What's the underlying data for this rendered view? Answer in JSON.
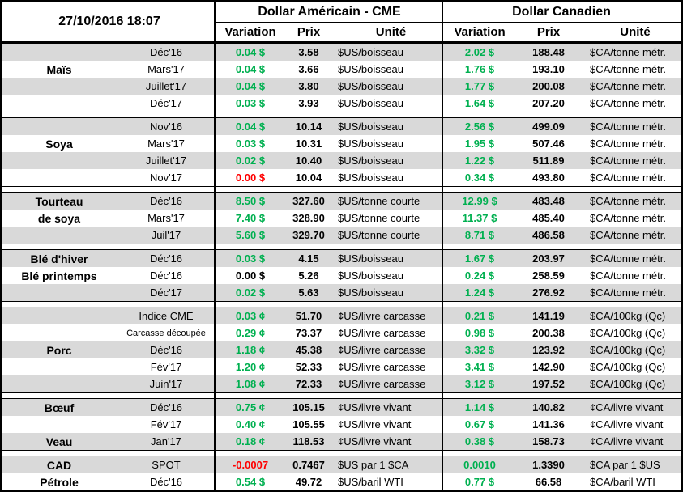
{
  "timestamp": "27/10/2016 18:07",
  "header": {
    "usd_title": "Dollar Américain - CME",
    "cad_title": "Dollar Canadien",
    "columns": {
      "variation": "Variation",
      "prix": "Prix",
      "unite": "Unité"
    }
  },
  "colors": {
    "positive": "#00B050",
    "negative": "#FF0000",
    "stripe": "#D9D9D9"
  },
  "sections": [
    {
      "rows": [
        {
          "name": "",
          "month": "Déc'16",
          "us": {
            "variation": "0.04 $",
            "trend": "up",
            "prix": "3.58",
            "unite": "$US/boisseau"
          },
          "ca": {
            "variation": "2.02 $",
            "trend": "up",
            "prix": "188.48",
            "unite": "$CA/tonne métr."
          }
        },
        {
          "name": "Maïs",
          "month": "Mars'17",
          "us": {
            "variation": "0.04 $",
            "trend": "up",
            "prix": "3.66",
            "unite": "$US/boisseau"
          },
          "ca": {
            "variation": "1.76 $",
            "trend": "up",
            "prix": "193.10",
            "unite": "$CA/tonne métr."
          }
        },
        {
          "name": "",
          "month": "Juillet'17",
          "us": {
            "variation": "0.04 $",
            "trend": "up",
            "prix": "3.80",
            "unite": "$US/boisseau"
          },
          "ca": {
            "variation": "1.77 $",
            "trend": "up",
            "prix": "200.08",
            "unite": "$CA/tonne métr."
          }
        },
        {
          "name": "",
          "month": "Déc'17",
          "us": {
            "variation": "0.03 $",
            "trend": "up",
            "prix": "3.93",
            "unite": "$US/boisseau"
          },
          "ca": {
            "variation": "1.64 $",
            "trend": "up",
            "prix": "207.20",
            "unite": "$CA/tonne métr."
          }
        }
      ]
    },
    {
      "rows": [
        {
          "name": "",
          "month": "Nov'16",
          "us": {
            "variation": "0.04 $",
            "trend": "up",
            "prix": "10.14",
            "unite": "$US/boisseau"
          },
          "ca": {
            "variation": "2.56 $",
            "trend": "up",
            "prix": "499.09",
            "unite": "$CA/tonne métr."
          }
        },
        {
          "name": "Soya",
          "month": "Mars'17",
          "us": {
            "variation": "0.03 $",
            "trend": "up",
            "prix": "10.31",
            "unite": "$US/boisseau"
          },
          "ca": {
            "variation": "1.95 $",
            "trend": "up",
            "prix": "507.46",
            "unite": "$CA/tonne métr."
          }
        },
        {
          "name": "",
          "month": "Juillet'17",
          "us": {
            "variation": "0.02 $",
            "trend": "up",
            "prix": "10.40",
            "unite": "$US/boisseau"
          },
          "ca": {
            "variation": "1.22 $",
            "trend": "up",
            "prix": "511.89",
            "unite": "$CA/tonne métr."
          }
        },
        {
          "name": "",
          "month": "Nov'17",
          "us": {
            "variation": "0.00 $",
            "trend": "down",
            "prix": "10.04",
            "unite": "$US/boisseau"
          },
          "ca": {
            "variation": "0.34 $",
            "trend": "up",
            "prix": "493.80",
            "unite": "$CA/tonne métr."
          }
        }
      ]
    },
    {
      "rows": [
        {
          "name": "Tourteau",
          "month": "Déc'16",
          "us": {
            "variation": "8.50 $",
            "trend": "up",
            "prix": "327.60",
            "unite": "$US/tonne courte"
          },
          "ca": {
            "variation": "12.99 $",
            "trend": "up",
            "prix": "483.48",
            "unite": "$CA/tonne métr."
          }
        },
        {
          "name": "de soya",
          "month": "Mars'17",
          "us": {
            "variation": "7.40 $",
            "trend": "up",
            "prix": "328.90",
            "unite": "$US/tonne courte"
          },
          "ca": {
            "variation": "11.37 $",
            "trend": "up",
            "prix": "485.40",
            "unite": "$CA/tonne métr."
          }
        },
        {
          "name": "",
          "month": "Juil'17",
          "us": {
            "variation": "5.60 $",
            "trend": "up",
            "prix": "329.70",
            "unite": "$US/tonne courte"
          },
          "ca": {
            "variation": "8.71 $",
            "trend": "up",
            "prix": "486.58",
            "unite": "$CA/tonne métr."
          }
        }
      ]
    },
    {
      "rows": [
        {
          "name": "Blé d'hiver",
          "month": "Déc'16",
          "us": {
            "variation": "0.03 $",
            "trend": "up",
            "prix": "4.15",
            "unite": "$US/boisseau"
          },
          "ca": {
            "variation": "1.67 $",
            "trend": "up",
            "prix": "203.97",
            "unite": "$CA/tonne métr."
          }
        },
        {
          "name": "Blé printemps",
          "month": "Déc'16",
          "us": {
            "variation": "0.00 $",
            "trend": "flat",
            "prix": "5.26",
            "unite": "$US/boisseau"
          },
          "ca": {
            "variation": "0.24 $",
            "trend": "up",
            "prix": "258.59",
            "unite": "$CA/tonne métr."
          }
        },
        {
          "name": "",
          "month": "Déc'17",
          "us": {
            "variation": "0.02 $",
            "trend": "up",
            "prix": "5.63",
            "unite": "$US/boisseau"
          },
          "ca": {
            "variation": "1.24 $",
            "trend": "up",
            "prix": "276.92",
            "unite": "$CA/tonne métr."
          }
        }
      ]
    },
    {
      "rows": [
        {
          "name": "",
          "month": "Indice CME",
          "us": {
            "variation": "0.03 ¢",
            "trend": "up",
            "prix": "51.70",
            "unite": "¢US/livre carcasse"
          },
          "ca": {
            "variation": "0.21 $",
            "trend": "up",
            "prix": "141.19",
            "unite": "$CA/100kg (Qc)"
          }
        },
        {
          "name": "",
          "month": "Carcasse découpée",
          "us": {
            "variation": "0.29 ¢",
            "trend": "up",
            "prix": "73.37",
            "unite": "¢US/livre carcasse"
          },
          "ca": {
            "variation": "0.98 $",
            "trend": "up",
            "prix": "200.38",
            "unite": "$CA/100kg (Qc)"
          }
        },
        {
          "name": "Porc",
          "month": "Déc'16",
          "us": {
            "variation": "1.18 ¢",
            "trend": "up",
            "prix": "45.38",
            "unite": "¢US/livre carcasse"
          },
          "ca": {
            "variation": "3.32 $",
            "trend": "up",
            "prix": "123.92",
            "unite": "$CA/100kg (Qc)"
          }
        },
        {
          "name": "",
          "month": "Fév'17",
          "us": {
            "variation": "1.20 ¢",
            "trend": "up",
            "prix": "52.33",
            "unite": "¢US/livre carcasse"
          },
          "ca": {
            "variation": "3.41 $",
            "trend": "up",
            "prix": "142.90",
            "unite": "$CA/100kg (Qc)"
          }
        },
        {
          "name": "",
          "month": "Juin'17",
          "us": {
            "variation": "1.08 ¢",
            "trend": "up",
            "prix": "72.33",
            "unite": "¢US/livre carcasse"
          },
          "ca": {
            "variation": "3.12 $",
            "trend": "up",
            "prix": "197.52",
            "unite": "$CA/100kg (Qc)"
          }
        }
      ]
    },
    {
      "rows": [
        {
          "name": "Bœuf",
          "month": "Déc'16",
          "us": {
            "variation": "0.75 ¢",
            "trend": "up",
            "prix": "105.15",
            "unite": "¢US/livre vivant"
          },
          "ca": {
            "variation": "1.14 $",
            "trend": "up",
            "prix": "140.82",
            "unite": "¢CA/livre vivant"
          }
        },
        {
          "name": "",
          "month": "Fév'17",
          "us": {
            "variation": "0.40 ¢",
            "trend": "up",
            "prix": "105.55",
            "unite": "¢US/livre vivant"
          },
          "ca": {
            "variation": "0.67 $",
            "trend": "up",
            "prix": "141.36",
            "unite": "¢CA/livre vivant"
          }
        },
        {
          "name": "Veau",
          "month": "Jan'17",
          "us": {
            "variation": "0.18 ¢",
            "trend": "up",
            "prix": "118.53",
            "unite": "¢US/livre vivant"
          },
          "ca": {
            "variation": "0.38 $",
            "trend": "up",
            "prix": "158.73",
            "unite": "¢CA/livre vivant"
          }
        }
      ]
    },
    {
      "rows": [
        {
          "name": "CAD",
          "month": "SPOT",
          "us": {
            "variation": "-0.0007",
            "trend": "down",
            "prix": "0.7467",
            "unite": "$US par 1 $CA"
          },
          "ca": {
            "variation": "0.0010",
            "trend": "up",
            "prix": "1.3390",
            "unite": "$CA par 1 $US"
          }
        },
        {
          "name": "Pétrole",
          "month": "Déc'16",
          "us": {
            "variation": "0.54 $",
            "trend": "up",
            "prix": "49.72",
            "unite": "$US/baril WTI"
          },
          "ca": {
            "variation": "0.77 $",
            "trend": "up",
            "prix": "66.58",
            "unite": "$CA/baril WTI"
          }
        }
      ]
    }
  ]
}
